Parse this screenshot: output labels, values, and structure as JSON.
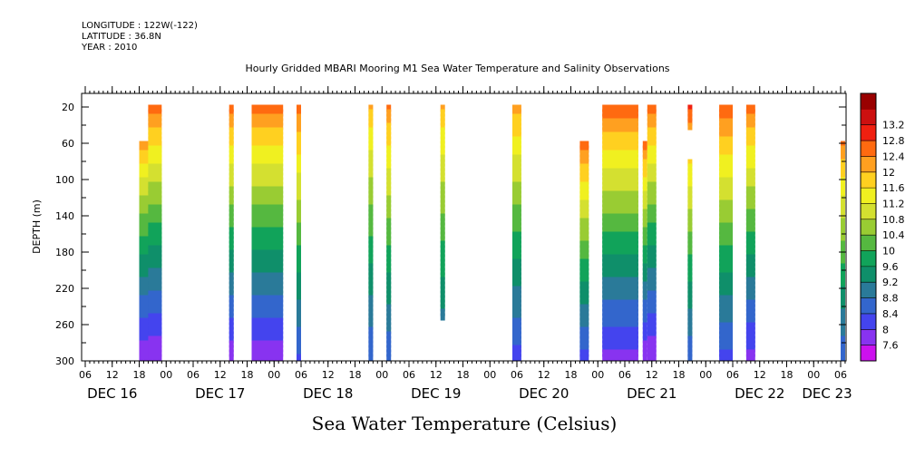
{
  "header": {
    "longitude": "LONGITUDE : 122W(-122)",
    "latitude": "LATITUDE : 36.8N",
    "year": "YEAR : 2010"
  },
  "title": "Hourly Gridded MBARI Mooring M1 Sea Water Temperature and Salinity Observations",
  "bottom_title": "Sea Water Temperature (Celsius)",
  "chart_data": {
    "type": "heatmap",
    "ylabel": "DEPTH (m)",
    "y_reversed": true,
    "ylim": [
      300,
      5
    ],
    "y_ticks": [
      20,
      60,
      100,
      140,
      180,
      220,
      260,
      300
    ],
    "x_hour_ticks": [
      "06",
      "12",
      "18",
      "00",
      "06",
      "12",
      "18",
      "00",
      "06",
      "12",
      "18",
      "00",
      "06",
      "12",
      "18",
      "00",
      "06",
      "12",
      "18",
      "00",
      "06",
      "12",
      "18",
      "00",
      "06",
      "12",
      "18",
      "00",
      "06"
    ],
    "x_day_labels": [
      "DEC 16",
      "DEC 17",
      "DEC 18",
      "DEC 19",
      "DEC 20",
      "DEC 21",
      "DEC 22",
      "DEC 23"
    ],
    "colorbar": {
      "levels": [
        7.6,
        8,
        8.4,
        8.8,
        9.2,
        9.6,
        10,
        10.4,
        10.8,
        11.2,
        11.6,
        12,
        12.4,
        12.8,
        13.2
      ],
      "colors": [
        "#cc11ee",
        "#8833f0",
        "#4444ee",
        "#3366cc",
        "#2a7a99",
        "#0f8f6a",
        "#11a35a",
        "#55b840",
        "#99cc33",
        "#d4e030",
        "#f0f020",
        "#ffd020",
        "#ffa020",
        "#ff6a10",
        "#f02010",
        "#cc1010",
        "#990000"
      ]
    },
    "columns": [
      {
        "time": "Dec 16 18:00-23:00",
        "top_depth": 60,
        "surface": 12.2,
        "bottom": 7.6
      },
      {
        "time": "Dec 16 20:00-23:00",
        "top_depth": 20,
        "surface": 12.6,
        "bottom": 7.6
      },
      {
        "time": "Dec 17 14:00-15:00",
        "top_depth": 20,
        "surface": 12.6,
        "bottom": 7.7
      },
      {
        "time": "Dec 17 19:00-Dec 18 02:00",
        "top_depth": 20,
        "surface": 12.6,
        "bottom": 7.7
      },
      {
        "time": "Dec 18 05:00-06:00",
        "top_depth": 20,
        "surface": 12.6,
        "bottom": 8.3
      },
      {
        "time": "Dec 18 21:00-22:00",
        "top_depth": 20,
        "surface": 12.0,
        "bottom": 8.4
      },
      {
        "time": "Dec 19 01:00-02:00",
        "top_depth": 20,
        "surface": 12.4,
        "bottom": 8.4
      },
      {
        "time": "Dec 19 13:00-14:00",
        "top_depth": 20,
        "surface": 12.0,
        "bottom": 8.6,
        "bottom_depth": 252
      },
      {
        "time": "Dec 20 05:00-07:00",
        "top_depth": 20,
        "surface": 12.2,
        "bottom": 8.2
      },
      {
        "time": "Dec 20 20:00-22:00",
        "top_depth": 60,
        "surface": 12.6,
        "bottom": 8.2
      },
      {
        "time": "Dec 21 01:00-09:00",
        "top_depth": 20,
        "surface": 12.7,
        "bottom": 7.8
      },
      {
        "time": "Dec 21 10:00-11:00",
        "top_depth": 60,
        "surface": 12.6,
        "bottom": 7.6
      },
      {
        "time": "Dec 21 11:00-13:00",
        "top_depth": 20,
        "surface": 12.6,
        "bottom": 7.6
      },
      {
        "time": "Dec 21 20:00-21:00",
        "top_depth": 20,
        "surface": 12.8,
        "bottom": 8.4,
        "gaps": [
          [
            42,
            78
          ]
        ]
      },
      {
        "time": "Dec 22 03:00-06:00",
        "top_depth": 20,
        "surface": 12.7,
        "bottom": 8.2
      },
      {
        "time": "Dec 22 09:00-11:00",
        "top_depth": 20,
        "surface": 12.6,
        "bottom": 7.8
      },
      {
        "time": "Dec 23 06:00",
        "top_depth": 60,
        "surface": 12.4,
        "bottom": 8.4
      }
    ]
  }
}
